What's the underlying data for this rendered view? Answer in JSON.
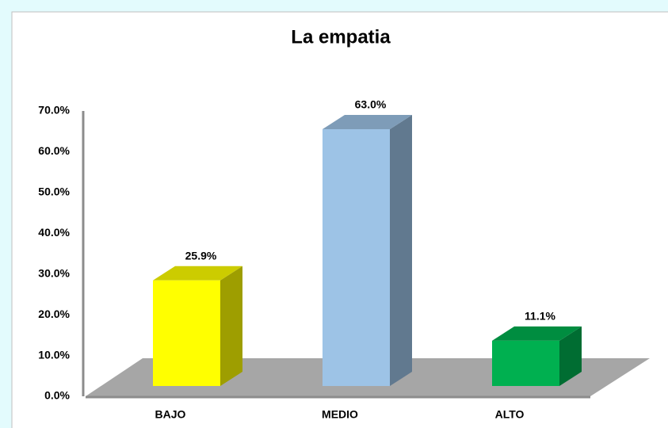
{
  "chart_data": {
    "type": "bar3d",
    "title": "La empatia",
    "categories": [
      "BAJO",
      "MEDIO",
      "ALTO"
    ],
    "values": [
      25.9,
      63.0,
      11.1
    ],
    "value_labels": [
      "25.9%",
      "63.0%",
      "11.1%"
    ],
    "colors": [
      "#ffff00",
      "#9dc3e6",
      "#00b050"
    ],
    "ylim": [
      0,
      70
    ],
    "yticks": [
      {
        "value": 0,
        "label": "0.0%"
      },
      {
        "value": 10,
        "label": "10.0%"
      },
      {
        "value": 20,
        "label": "20.0%"
      },
      {
        "value": 30,
        "label": "30.0%"
      },
      {
        "value": 40,
        "label": "40.0%"
      },
      {
        "value": 50,
        "label": "50.0%"
      },
      {
        "value": 60,
        "label": "60.0%"
      },
      {
        "value": 70,
        "label": "70.0%"
      }
    ],
    "grid": false
  }
}
